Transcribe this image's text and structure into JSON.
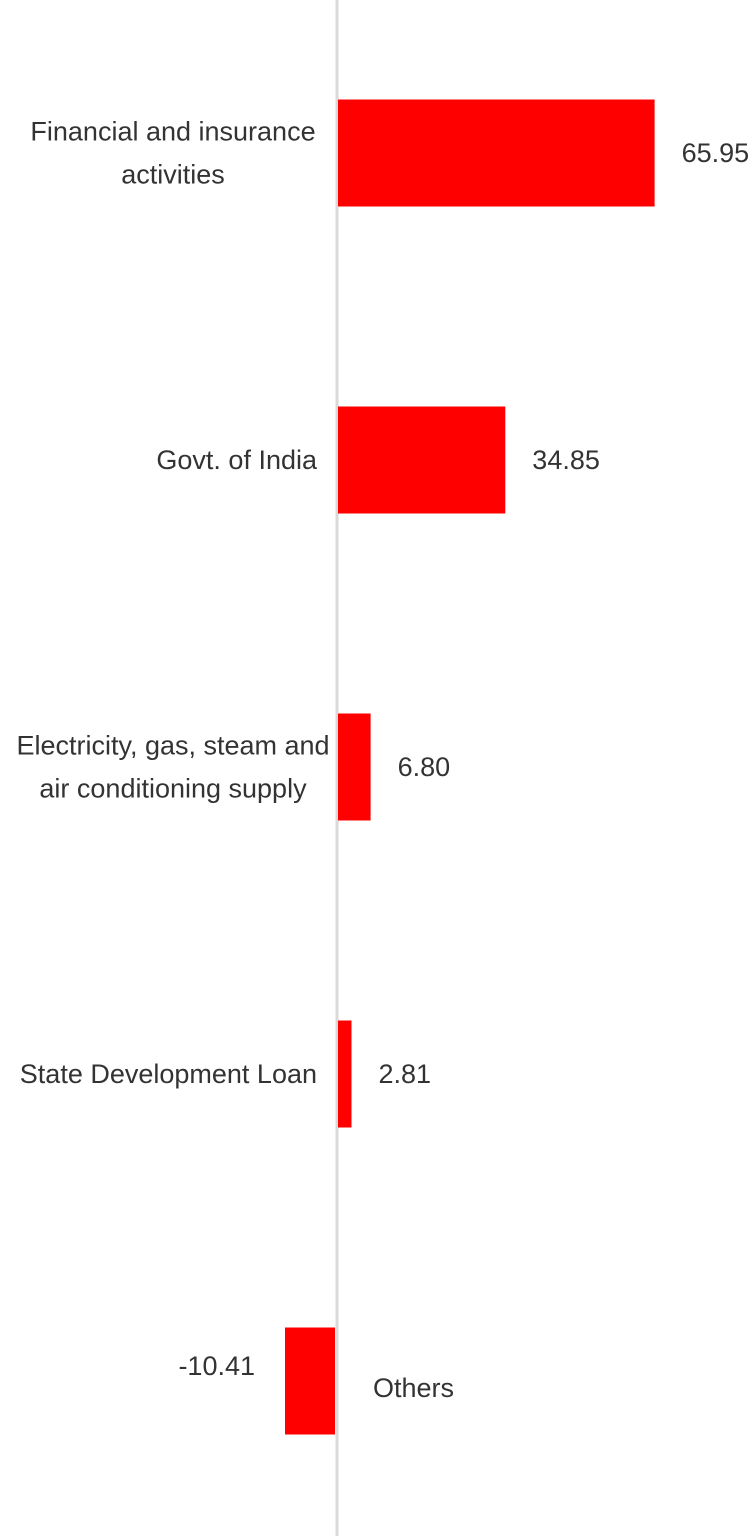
{
  "chart_data": {
    "type": "bar",
    "orientation": "horizontal",
    "categories": [
      "Financial and insurance activities",
      "Govt. of India",
      "Electricity, gas, steam and air conditioning supply",
      "State Development Loan",
      "Others"
    ],
    "category_label_lines": [
      [
        "Financial and insurance",
        "activities"
      ],
      [
        "Govt. of India"
      ],
      [
        "Electricity, gas, steam and",
        "air conditioning supply"
      ],
      [
        "State Development Loan"
      ],
      [
        "Others"
      ]
    ],
    "values": [
      65.95,
      34.85,
      6.8,
      2.81,
      -10.41
    ],
    "value_labels": [
      "65.95",
      "34.85",
      "6.80",
      "2.81",
      "-10.41"
    ],
    "title": "",
    "xlabel": "",
    "ylabel": "",
    "grid": false,
    "legend": "none",
    "colors": {
      "bar": "#ff0000",
      "axis": "#d9d9d9",
      "text": "#333333"
    }
  }
}
